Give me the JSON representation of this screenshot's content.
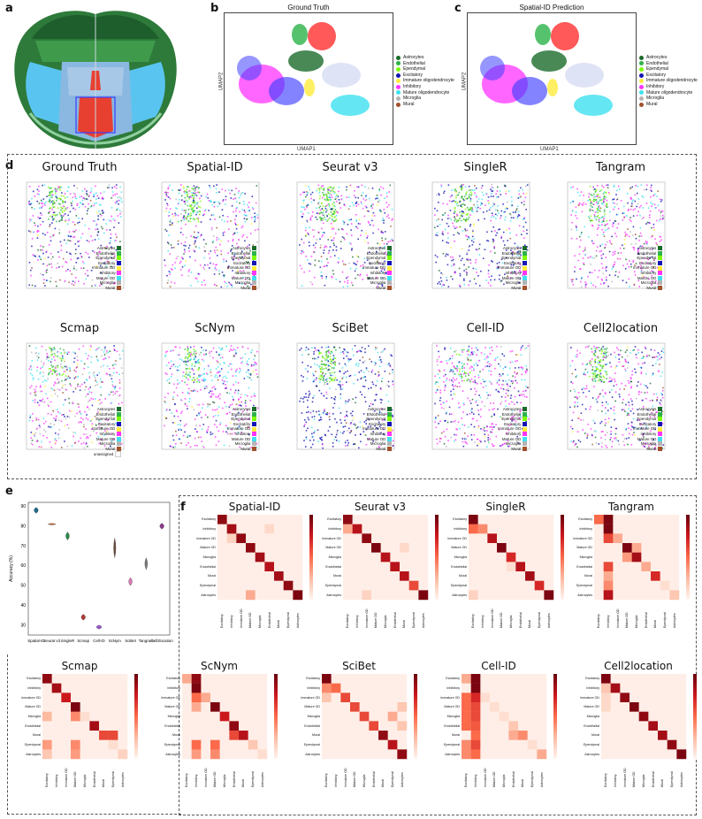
{
  "panels": {
    "a": "a",
    "b": "b",
    "c": "c",
    "d": "d",
    "e": "e",
    "f": "f"
  },
  "umap": {
    "xlabel": "UMAP1",
    "ylabel": "UMAP2",
    "plots": [
      {
        "title": "Ground Truth"
      },
      {
        "title": "Spatial-ID Prediction"
      }
    ],
    "legend": [
      {
        "label": "Astrocytes",
        "color": "#1a6b2a"
      },
      {
        "label": "Endothelial",
        "color": "#2db34a"
      },
      {
        "label": "Ependymal",
        "color": "#7cfc00"
      },
      {
        "label": "Excitatory",
        "color": "#1414b4"
      },
      {
        "label": "Immature oligodendrocyte",
        "color": "#ffeb3b"
      },
      {
        "label": "Inhibitory",
        "color": "#ff33ff"
      },
      {
        "label": "Mature oligodendrocyte",
        "color": "#3ee0f0"
      },
      {
        "label": "Microglia",
        "color": "#b4b4b4"
      },
      {
        "label": "Mural",
        "color": "#a0522d"
      }
    ]
  },
  "cubes": {
    "titles_row1": [
      "Ground Truth",
      "Spatial-ID",
      "Seurat v3",
      "SingleR",
      "Tangram"
    ],
    "titles_row2": [
      "Scmap",
      "ScNym",
      "SciBet",
      "Cell-ID",
      "Cell2location"
    ],
    "legend": [
      {
        "label": "Astrocytes",
        "color": "#1a6b2a"
      },
      {
        "label": "Endothelial",
        "color": "#2db34a"
      },
      {
        "label": "Ependymal",
        "color": "#7cfc00"
      },
      {
        "label": "Excitatory",
        "color": "#1414b4"
      },
      {
        "label": "Immature OD",
        "color": "#ffeb3b"
      },
      {
        "label": "Inhibitory",
        "color": "#ff33ff"
      },
      {
        "label": "Mature OD",
        "color": "#3ee0f0"
      },
      {
        "label": "Microglia",
        "color": "#b4b4b4"
      },
      {
        "label": "Mural",
        "color": "#a0522d"
      }
    ],
    "extra_label": "unassigned"
  },
  "chart_data": {
    "type": "violin",
    "ylabel": "Accuracy (%)",
    "ylim": [
      25,
      92
    ],
    "yticks": [
      30,
      40,
      50,
      60,
      70,
      80,
      90
    ],
    "categories": [
      "Spatial-ID",
      "Seurat v3",
      "SingleR",
      "Scmap",
      "Cell-ID",
      "ScNym",
      "SciBet",
      "Tangram",
      "Cell2location"
    ],
    "series": [
      {
        "center": 88,
        "spread": 1.5,
        "color": "#1f6b8a"
      },
      {
        "center": 81,
        "spread": 0.4,
        "color": "#c96a3a"
      },
      {
        "center": 75,
        "spread": 2.0,
        "color": "#2e8a4a"
      },
      {
        "center": 34,
        "spread": 1.5,
        "color": "#b33a3a"
      },
      {
        "center": 29,
        "spread": 1.0,
        "color": "#9a5ac8"
      },
      {
        "center": 69,
        "spread": 5.0,
        "color": "#6a4a3a"
      },
      {
        "center": 52,
        "spread": 2.0,
        "color": "#d97ab8"
      },
      {
        "center": 61,
        "spread": 3.0,
        "color": "#7a7a7a"
      },
      {
        "center": 80,
        "spread": 1.5,
        "color": "#8a3a8a"
      }
    ]
  },
  "heatmaps": {
    "labels": [
      "Excitatory",
      "Inhibitory",
      "Immature OD",
      "Mature OD",
      "Microglia",
      "Endothelial",
      "Mural",
      "Ependymal",
      "Astrocytes"
    ],
    "plots": [
      {
        "title": "Spatial-ID",
        "diag": [
          0.9,
          0.85,
          0.9,
          0.9,
          0.85,
          0.8,
          0.85,
          0.9,
          0.95
        ],
        "off": [
          [
            8,
            3,
            0.3
          ],
          [
            2,
            1,
            0.15
          ],
          [
            1,
            5,
            0.12
          ]
        ]
      },
      {
        "title": "Seurat v3",
        "diag": [
          0.9,
          0.8,
          0.9,
          0.95,
          0.8,
          0.8,
          0.8,
          0.6,
          0.95
        ],
        "off": [
          [
            1,
            0,
            0.3
          ],
          [
            8,
            2,
            0.15
          ],
          [
            3,
            6,
            0.12
          ]
        ]
      },
      {
        "title": "SingleR",
        "diag": [
          0.95,
          0.4,
          0.8,
          0.95,
          0.7,
          0.8,
          0.85,
          0.7,
          0.95
        ],
        "off": [
          [
            1,
            0,
            0.5
          ],
          [
            8,
            0,
            0.15
          ],
          [
            5,
            4,
            0.1
          ]
        ]
      },
      {
        "title": "Tangram",
        "diag": [
          0.5,
          0.95,
          0.3,
          0.95,
          0.85,
          0.3,
          0.7,
          0.1,
          0.2
        ],
        "off": [
          [
            0,
            1,
            0.95
          ],
          [
            2,
            1,
            0.6
          ],
          [
            5,
            1,
            0.6
          ],
          [
            7,
            1,
            0.4
          ],
          [
            8,
            1,
            0.8
          ],
          [
            4,
            3,
            0.35
          ],
          [
            3,
            4,
            0.3
          ],
          [
            6,
            1,
            0.3
          ]
        ]
      },
      {
        "title": "Scmap",
        "diag": [
          0.9,
          0.85,
          0.75,
          0.95,
          0.1,
          0.85,
          0.7,
          0.1,
          0.15
        ],
        "off": [
          [
            4,
            3,
            0.4
          ],
          [
            4,
            0,
            0.25
          ],
          [
            7,
            0,
            0.35
          ],
          [
            7,
            3,
            0.4
          ],
          [
            8,
            3,
            0.35
          ],
          [
            8,
            0,
            0.2
          ],
          [
            6,
            6,
            0.6
          ],
          [
            6,
            7,
            0.6
          ]
        ]
      },
      {
        "title": "ScNym",
        "diag": [
          0.3,
          0.95,
          0.3,
          0.95,
          0.75,
          0.9,
          0.8,
          0.2,
          0.1
        ],
        "off": [
          [
            0,
            1,
            0.9
          ],
          [
            2,
            1,
            0.5
          ],
          [
            3,
            1,
            0.3
          ],
          [
            6,
            5,
            0.6
          ],
          [
            7,
            1,
            0.5
          ],
          [
            7,
            3,
            0.5
          ],
          [
            8,
            1,
            0.35
          ],
          [
            8,
            3,
            0.4
          ]
        ]
      },
      {
        "title": "SciBet",
        "diag": [
          0.95,
          0.5,
          0.6,
          0.6,
          0.6,
          0.6,
          0.9,
          0.8,
          0.9
        ],
        "off": [
          [
            1,
            0,
            0.4
          ],
          [
            2,
            0,
            0.2
          ],
          [
            4,
            7,
            0.3
          ],
          [
            5,
            8,
            0.2
          ],
          [
            3,
            8,
            0.2
          ]
        ]
      },
      {
        "title": "Cell-ID",
        "diag": [
          0.3,
          0.95,
          0.1,
          0.1,
          0.1,
          0.2,
          0.4,
          0.1,
          0.3
        ],
        "off": [
          [
            0,
            1,
            0.95
          ],
          [
            2,
            0,
            0.5
          ],
          [
            2,
            1,
            0.7
          ],
          [
            3,
            0,
            0.5
          ],
          [
            3,
            1,
            0.6
          ],
          [
            4,
            0,
            0.5
          ],
          [
            4,
            1,
            0.6
          ],
          [
            5,
            1,
            0.55
          ],
          [
            5,
            0,
            0.5
          ],
          [
            6,
            1,
            0.5
          ],
          [
            6,
            5,
            0.3
          ],
          [
            7,
            1,
            0.6
          ],
          [
            7,
            0,
            0.4
          ],
          [
            8,
            1,
            0.5
          ],
          [
            8,
            0,
            0.4
          ]
        ]
      },
      {
        "title": "Cell2location",
        "diag": [
          0.95,
          0.85,
          0.9,
          0.95,
          0.9,
          0.85,
          0.85,
          0.9,
          0.95
        ],
        "off": [
          [
            1,
            0,
            0.2
          ],
          [
            2,
            0,
            0.12
          ],
          [
            3,
            0,
            0.12
          ]
        ]
      }
    ]
  }
}
